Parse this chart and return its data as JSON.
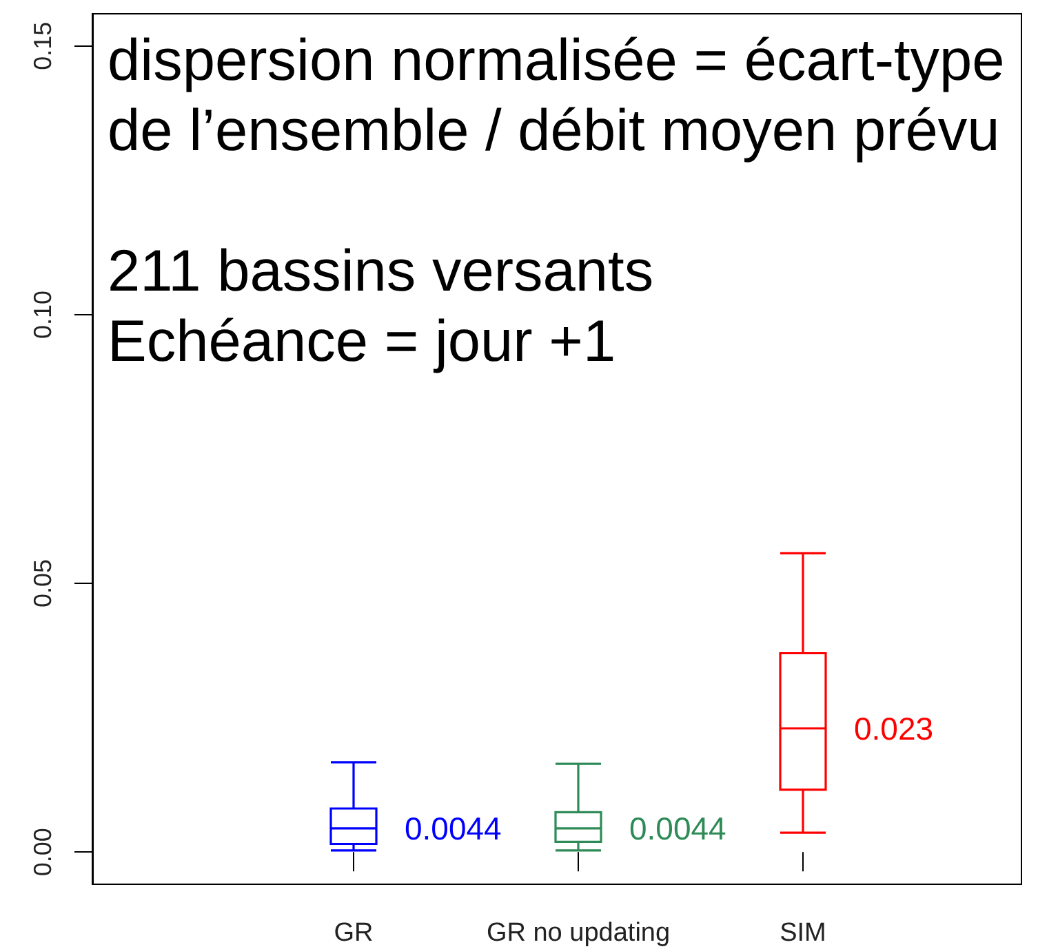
{
  "chart_data": {
    "type": "box",
    "categories": [
      "GR",
      "GR no updating",
      "SIM"
    ],
    "boxes": [
      {
        "low": 0.0003,
        "q1": 0.0015,
        "median": 0.0044,
        "q3": 0.0081,
        "high": 0.0167
      },
      {
        "low": 0.0003,
        "q1": 0.0019,
        "median": 0.0044,
        "q3": 0.0074,
        "high": 0.0164
      },
      {
        "low": 0.0036,
        "q1": 0.0116,
        "median": 0.023,
        "q3": 0.037,
        "high": 0.0556
      }
    ],
    "colors": [
      "#0000ff",
      "#2e8b57",
      "#ff0000"
    ],
    "ylim": [
      -0.006,
      0.156
    ],
    "yticks": [
      {
        "value": 0,
        "label": "0.00"
      },
      {
        "value": 0.05,
        "label": "0.05"
      },
      {
        "value": 0.1,
        "label": "0.10"
      },
      {
        "value": 0.15,
        "label": "0.15"
      }
    ],
    "grid": false,
    "annotations": [
      "dispersion normalisée = écart-type de l’ensemble / débit moyen prévu",
      "211 bassins versants\nEchéance = jour +1",
      {
        "text": "0.0044",
        "x": "GR",
        "y": 0.0044
      },
      {
        "text": "0.0044",
        "x": "GR no updating",
        "y": 0.0044
      },
      {
        "text": "0.023",
        "x": "SIM",
        "y": 0.023
      }
    ]
  }
}
